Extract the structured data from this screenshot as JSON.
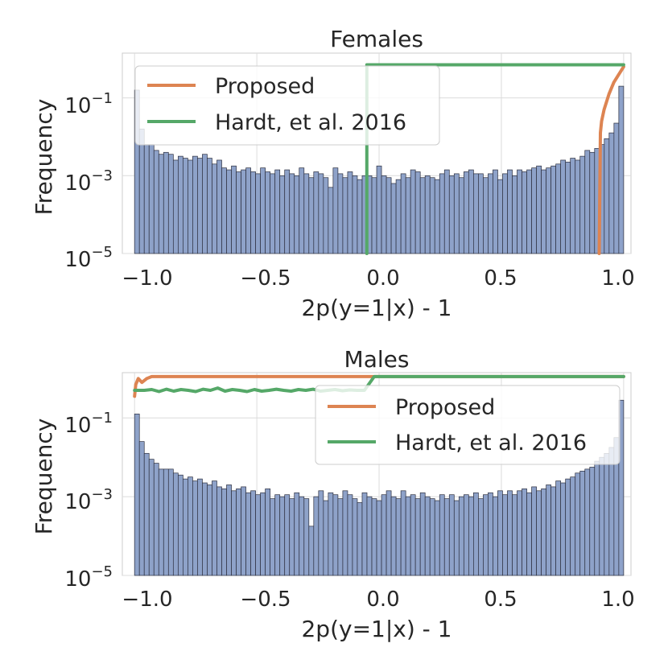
{
  "chart_data": [
    {
      "type": "bar",
      "title": "Females",
      "xlabel": "2p(y=1|x) - 1",
      "ylabel": "Frequency",
      "xlim": [
        -1.05,
        1.03
      ],
      "ylim_log10": [
        -5,
        0.15
      ],
      "yscale": "log",
      "xticks": [
        {
          "value": -1.0,
          "label": "−1.0"
        },
        {
          "value": -0.5,
          "label": "−0.5"
        },
        {
          "value": 0.0,
          "label": "0.0"
        },
        {
          "value": 0.5,
          "label": "0.5"
        },
        {
          "value": 1.0,
          "label": "1.0"
        }
      ],
      "yticks": [
        {
          "exp": -1,
          "base": "10",
          "sup": "−1"
        },
        {
          "exp": -3,
          "base": "10",
          "sup": "−3"
        },
        {
          "exp": -5,
          "base": "10",
          "sup": "−5"
        }
      ],
      "legend": {
        "location": "upper-left",
        "entries": [
          "Proposed",
          "Hardt, et al. 2016"
        ]
      },
      "colors": {
        "bars": "#8ea2c9",
        "bar_edge": "#2c2f3f",
        "proposed": "#dd8452",
        "hardt": "#55a868",
        "grid": "#dcdcdc"
      },
      "hist_log10": [
        -0.8,
        -1.8,
        -2.2,
        -2.2,
        -2.35,
        -2.45,
        -2.4,
        -2.45,
        -2.6,
        -2.5,
        -2.55,
        -2.6,
        -2.5,
        -2.55,
        -2.45,
        -2.55,
        -2.7,
        -2.6,
        -2.8,
        -2.85,
        -2.75,
        -2.9,
        -2.85,
        -2.8,
        -2.9,
        -2.95,
        -2.8,
        -2.9,
        -2.95,
        -2.85,
        -3.0,
        -2.85,
        -2.95,
        -3.0,
        -2.8,
        -2.95,
        -3.05,
        -2.9,
        -2.95,
        -3.05,
        -3.3,
        -2.8,
        -2.95,
        -3.05,
        -2.9,
        -3.0,
        -3.1,
        -3.0,
        -3.0,
        -3.05,
        -2.75,
        -3.0,
        -3.05,
        -3.2,
        -3.1,
        -2.95,
        -3.05,
        -2.85,
        -2.9,
        -3.05,
        -3.0,
        -3.05,
        -3.1,
        -2.95,
        -2.85,
        -3.0,
        -2.95,
        -3.05,
        -2.9,
        -2.85,
        -2.95,
        -2.95,
        -3.05,
        -2.95,
        -2.85,
        -3.1,
        -2.95,
        -2.85,
        -3.0,
        -2.85,
        -2.9,
        -2.85,
        -2.8,
        -2.75,
        -2.85,
        -2.8,
        -2.75,
        -2.7,
        -2.6,
        -2.65,
        -2.55,
        -2.6,
        -2.5,
        -2.35,
        -2.4,
        -2.3,
        -2.2,
        -2.05,
        -1.9,
        -1.65,
        -0.7
      ],
      "series": [
        {
          "name": "Proposed",
          "x": [
            0.9,
            0.905,
            0.91,
            0.92,
            0.94,
            0.96,
            0.98,
            1.0
          ],
          "y_log10": [
            -5,
            -1.9,
            -1.6,
            -1.3,
            -0.9,
            -0.6,
            -0.4,
            -0.2
          ]
        },
        {
          "name": "Hardt, et al. 2016",
          "x": [
            -0.05,
            -0.05,
            -0.05,
            1.0
          ],
          "y_log10": [
            -5,
            -2.0,
            -0.15,
            -0.15
          ]
        }
      ]
    },
    {
      "type": "bar",
      "title": "Males",
      "xlabel": "2p(y=1|x) - 1",
      "ylabel": "Frequency",
      "xlim": [
        -1.05,
        1.03
      ],
      "ylim_log10": [
        -5,
        0.15
      ],
      "yscale": "log",
      "xticks": [
        {
          "value": -1.0,
          "label": "−1.0"
        },
        {
          "value": -0.5,
          "label": "−0.5"
        },
        {
          "value": 0.0,
          "label": "0.0"
        },
        {
          "value": 0.5,
          "label": "0.5"
        },
        {
          "value": 1.0,
          "label": "1.0"
        }
      ],
      "yticks": [
        {
          "exp": -1,
          "base": "10",
          "sup": "−1"
        },
        {
          "exp": -3,
          "base": "10",
          "sup": "−3"
        },
        {
          "exp": -5,
          "base": "10",
          "sup": "−5"
        }
      ],
      "legend": {
        "location": "upper-right",
        "entries": [
          "Proposed",
          "Hardt, et al. 2016"
        ]
      },
      "colors": {
        "bars": "#8ea2c9",
        "bar_edge": "#2c2f3f",
        "proposed": "#dd8452",
        "hardt": "#55a868",
        "grid": "#dcdcdc"
      },
      "hist_log10": [
        -0.9,
        -1.6,
        -1.9,
        -2.05,
        -2.15,
        -2.3,
        -2.3,
        -2.3,
        -2.4,
        -2.45,
        -2.55,
        -2.5,
        -2.6,
        -2.55,
        -2.65,
        -2.7,
        -2.6,
        -2.75,
        -2.8,
        -2.7,
        -2.85,
        -2.8,
        -2.75,
        -2.9,
        -2.85,
        -2.95,
        -2.9,
        -2.8,
        -3.05,
        -2.95,
        -3.0,
        -2.95,
        -3.05,
        -2.9,
        -3.0,
        -3.05,
        -3.75,
        -3.0,
        -2.85,
        -3.1,
        -2.9,
        -2.95,
        -3.05,
        -2.85,
        -2.95,
        -3.05,
        -3.15,
        -2.9,
        -3.0,
        -3.05,
        -3.1,
        -2.95,
        -2.85,
        -3.0,
        -3.05,
        -2.85,
        -3.0,
        -2.95,
        -3.05,
        -2.9,
        -3.0,
        -3.05,
        -3.1,
        -2.95,
        -3.05,
        -2.95,
        -3.1,
        -3.0,
        -2.95,
        -3.0,
        -2.9,
        -3.05,
        -2.95,
        -2.9,
        -3.0,
        -2.85,
        -2.95,
        -2.85,
        -2.95,
        -2.85,
        -2.8,
        -2.9,
        -2.75,
        -2.85,
        -2.8,
        -2.7,
        -2.75,
        -2.6,
        -2.65,
        -2.55,
        -2.5,
        -2.4,
        -2.35,
        -2.3,
        -2.25,
        -2.1,
        -2.0,
        -1.9,
        -1.75,
        -1.5,
        -0.55
      ],
      "series": [
        {
          "name": "Proposed",
          "x": [
            -1.0,
            -0.995,
            -0.985,
            -0.97,
            -0.95,
            -0.93,
            1.0
          ],
          "y_log10": [
            -0.45,
            -0.15,
            0.0,
            -0.1,
            0.0,
            0.05,
            0.05
          ]
        },
        {
          "name": "Hardt, et al. 2016",
          "x": [
            -1.0,
            -0.96,
            -0.93,
            -0.9,
            -0.87,
            -0.84,
            -0.81,
            -0.78,
            -0.75,
            -0.72,
            -0.69,
            -0.66,
            -0.63,
            -0.6,
            -0.57,
            -0.54,
            -0.51,
            -0.48,
            -0.45,
            -0.42,
            -0.39,
            -0.36,
            -0.33,
            -0.3,
            -0.27,
            -0.24,
            -0.21,
            -0.18,
            -0.15,
            -0.12,
            -0.09,
            -0.06,
            -0.02,
            1.0
          ],
          "y_log10": [
            -0.3,
            -0.3,
            -0.28,
            -0.33,
            -0.27,
            -0.32,
            -0.28,
            -0.3,
            -0.33,
            -0.27,
            -0.3,
            -0.24,
            -0.32,
            -0.28,
            -0.3,
            -0.33,
            -0.28,
            -0.32,
            -0.3,
            -0.27,
            -0.3,
            -0.32,
            -0.28,
            -0.3,
            -0.27,
            -0.32,
            -0.3,
            -0.28,
            -0.31,
            -0.29,
            -0.3,
            -0.3,
            0.05,
            0.05
          ]
        }
      ]
    }
  ]
}
